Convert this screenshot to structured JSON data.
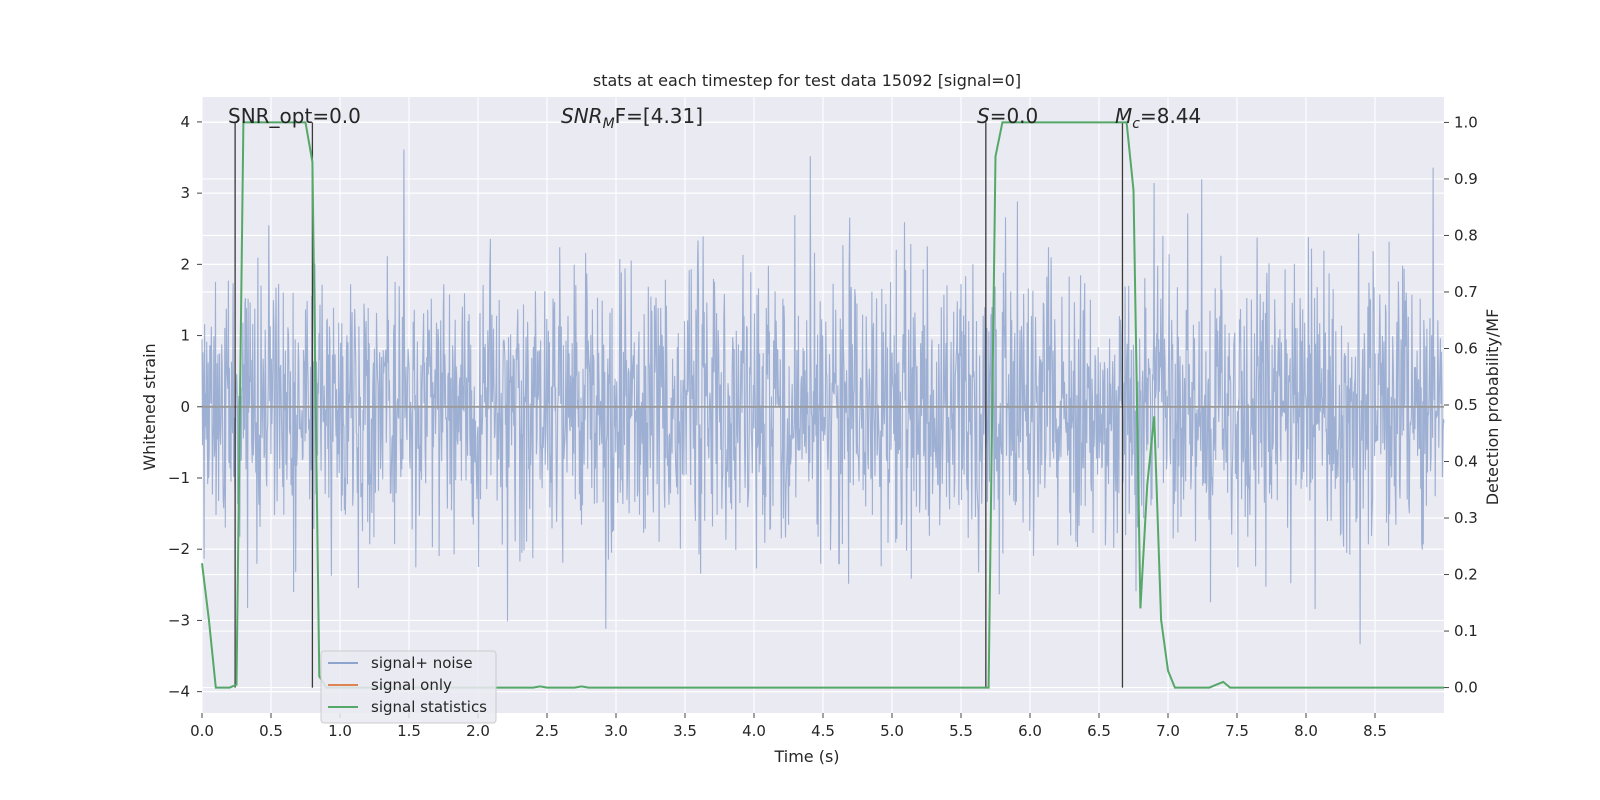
{
  "chart_data": {
    "type": "line",
    "title": "stats at each timestep for test data 15092 [signal=0]",
    "xlabel": "Time (s)",
    "ylabel": "Whitened strain",
    "y2label": "Detection probability/MF",
    "xlim": [
      0.0,
      9.0
    ],
    "ylim": [
      -4.3,
      4.35
    ],
    "y2lim": [
      -0.045,
      1.045
    ],
    "xticks": [
      "0.0",
      "0.5",
      "1.0",
      "1.5",
      "2.0",
      "2.5",
      "3.0",
      "3.5",
      "4.0",
      "4.5",
      "5.0",
      "5.5",
      "6.0",
      "6.5",
      "7.0",
      "7.5",
      "8.0",
      "8.5"
    ],
    "yticks": [
      "4",
      "3",
      "2",
      "1",
      "0",
      "−1",
      "−2",
      "−3",
      "−4"
    ],
    "y2ticks": [
      "1.0",
      "0.9",
      "0.8",
      "0.7",
      "0.6",
      "0.5",
      "0.4",
      "0.3",
      "0.2",
      "0.1",
      "0.0"
    ],
    "grid": true,
    "legend_position": "lower-left",
    "annotations": {
      "snr_opt": "SNR_opt=0.0",
      "snr_mf_name": "SNR",
      "snr_mf_sub": "M",
      "snr_mf_rest": "F=[4.31]",
      "s_name": "S",
      "s_rest": "=0.0",
      "mc_name": "M",
      "mc_sub": "c",
      "mc_rest": "=8.44"
    },
    "series": [
      {
        "name": "signal+ noise",
        "color": "#8fa4cd",
        "style": "noise band, roughly -2 to 2 with spikes to about +/-3.5"
      },
      {
        "name": "signal only",
        "color": "#dd8452",
        "values": [
          0
        ]
      },
      {
        "name": "signal statistics",
        "color": "#55a868",
        "axis": "right",
        "x": [
          0.0,
          0.05,
          0.1,
          0.15,
          0.2,
          0.25,
          0.3,
          0.35,
          0.4,
          0.45,
          0.5,
          0.55,
          0.6,
          0.65,
          0.7,
          0.75,
          0.8,
          0.85,
          0.9,
          1.0,
          2.0,
          2.4,
          2.45,
          2.5,
          2.7,
          2.75,
          2.8,
          4.0,
          5.0,
          5.65,
          5.7,
          5.75,
          5.8,
          6.0,
          6.5,
          6.7,
          6.75,
          6.8,
          6.85,
          6.9,
          6.95,
          7.0,
          7.05,
          7.3,
          7.35,
          7.4,
          7.45,
          8.0,
          9.0
        ],
        "y": [
          0.22,
          0.12,
          0.0,
          0.0,
          0.0,
          0.005,
          1.0,
          1.0,
          1.0,
          1.0,
          1.0,
          1.0,
          1.0,
          1.0,
          1.0,
          1.0,
          0.93,
          0.02,
          0.0,
          0.0,
          0.0,
          0.0,
          0.002,
          0.0,
          0.0,
          0.002,
          0.0,
          0.0,
          0.0,
          0.0,
          0.0,
          0.94,
          1.0,
          1.0,
          1.0,
          1.0,
          0.88,
          0.14,
          0.36,
          0.48,
          0.12,
          0.03,
          0.0,
          0.0,
          0.005,
          0.01,
          0.0,
          0.0,
          0.0
        ]
      }
    ],
    "vlines_x": [
      0.24,
      0.8,
      5.68,
      6.67
    ]
  }
}
